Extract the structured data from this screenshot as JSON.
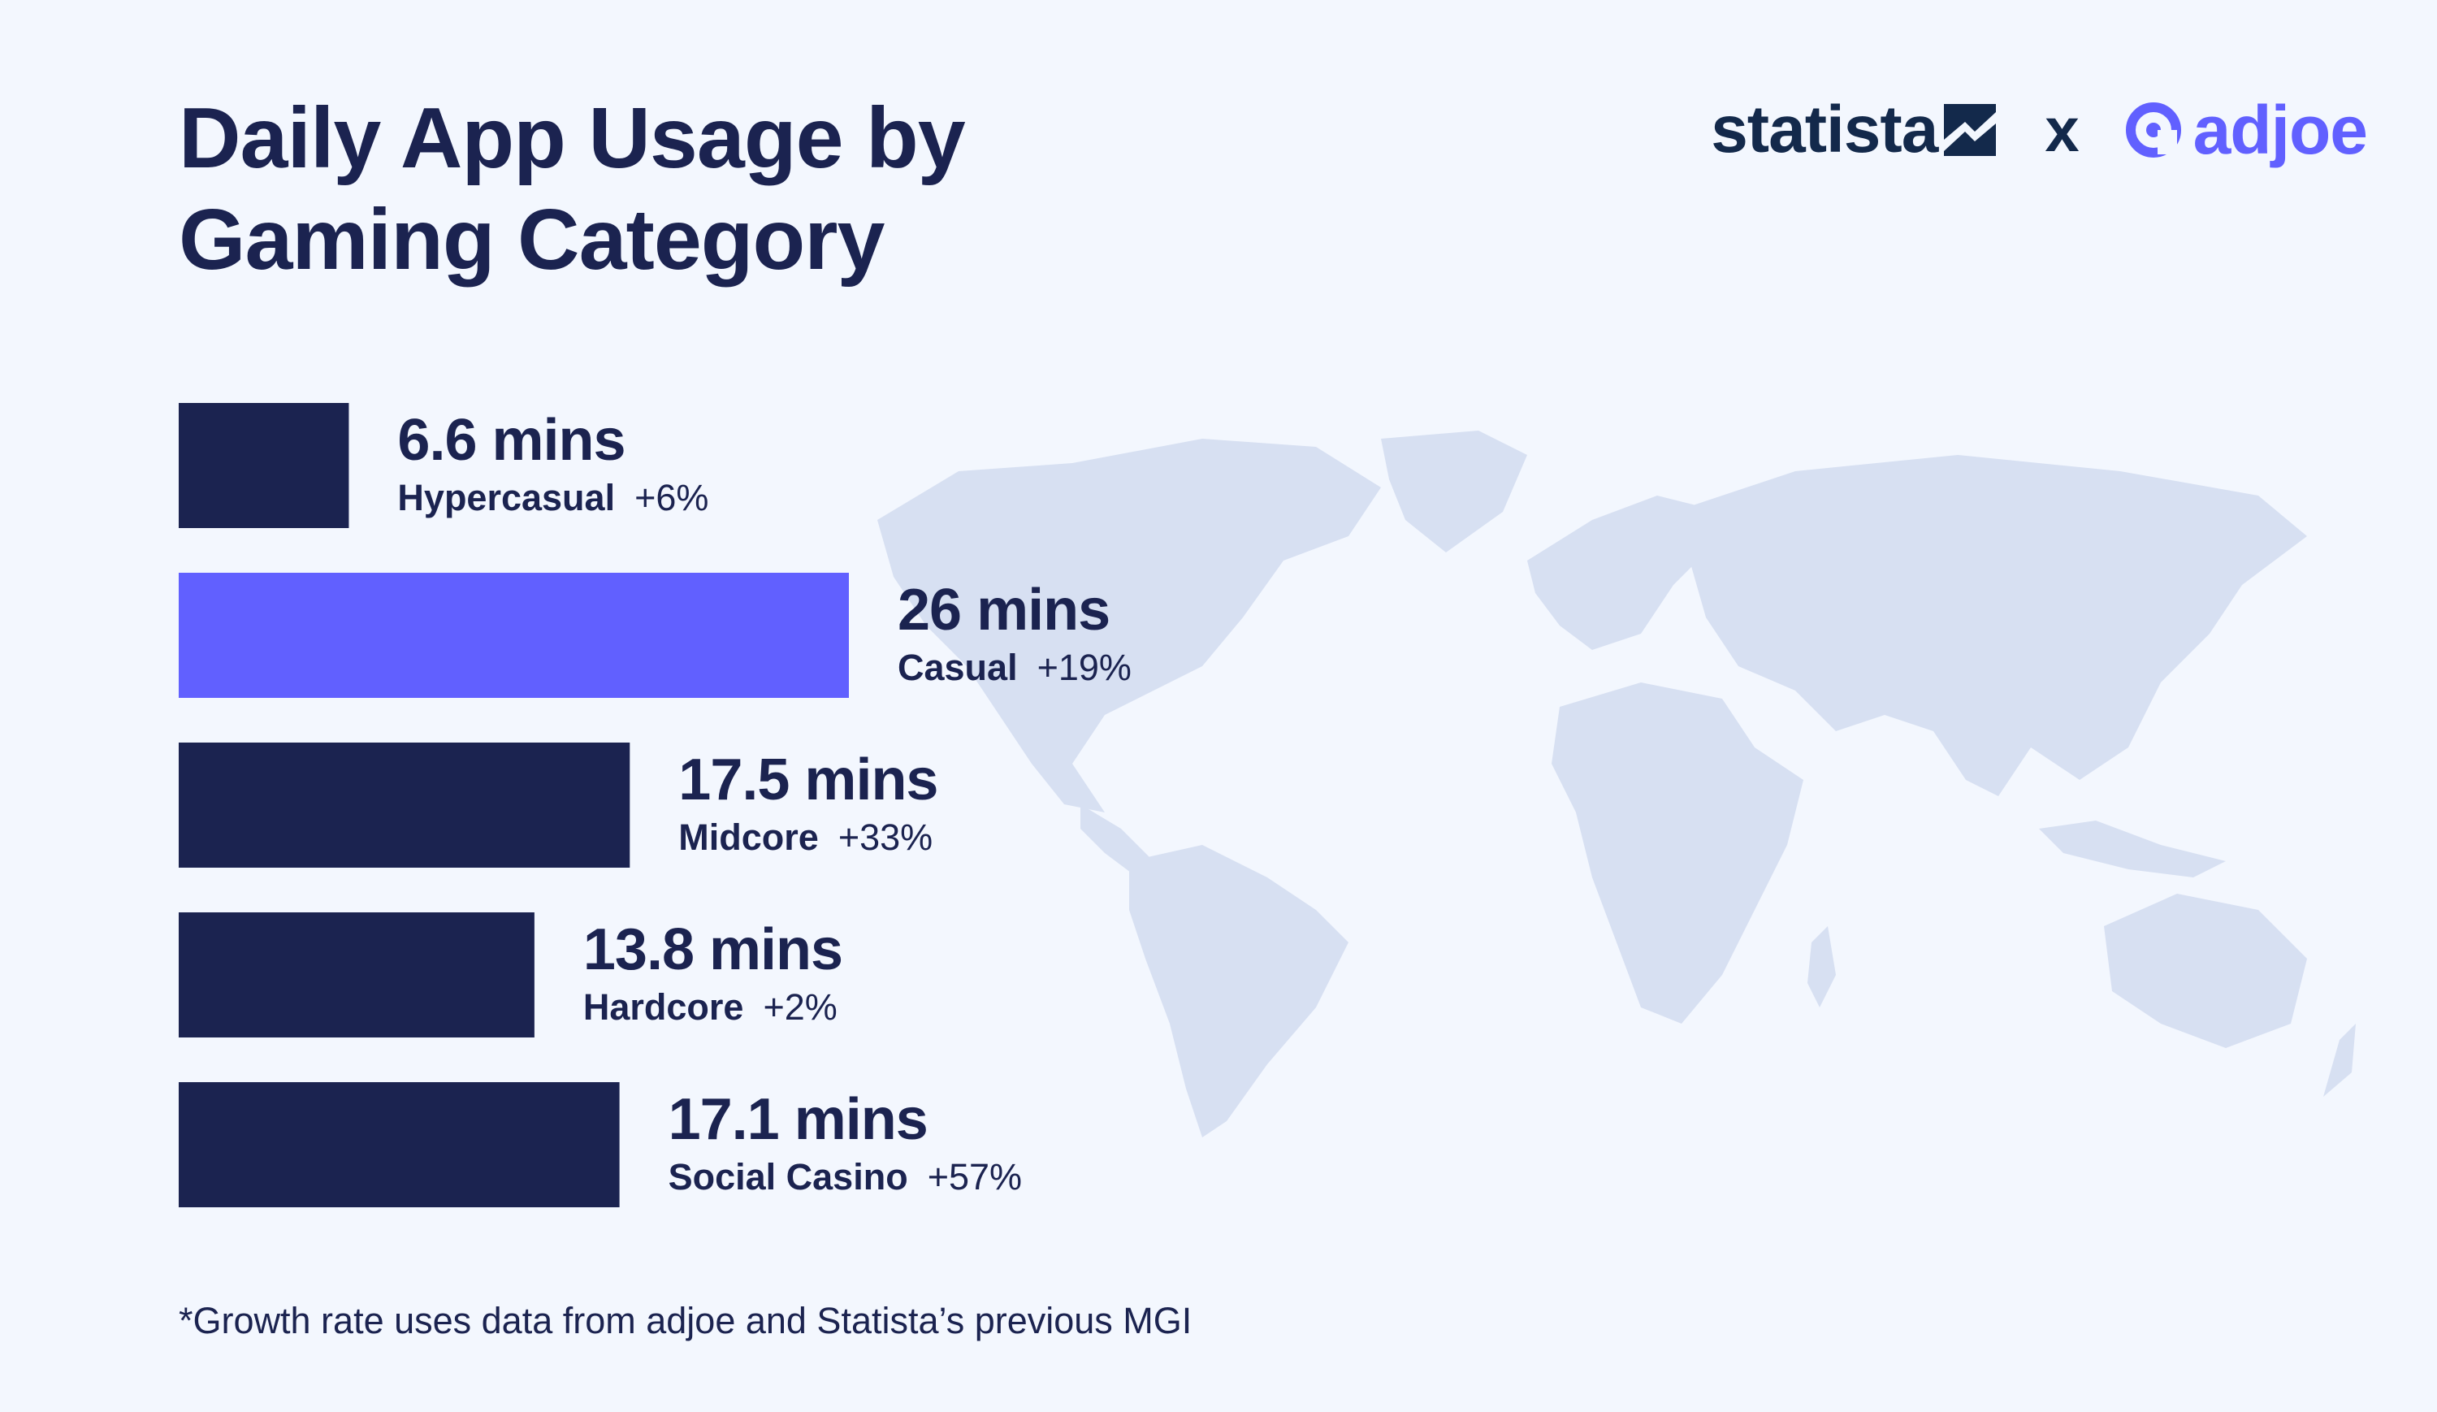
{
  "title_line1": "Daily App Usage by",
  "title_line2": "Gaming Category",
  "logos": {
    "statista": "statista",
    "separator": "x",
    "adjoe": "adjoe"
  },
  "footnote": "*Growth rate uses data from adjoe and Statista’s previous MGI",
  "colors": {
    "bar_default": "#1b2350",
    "bar_highlight": "#6160ff",
    "background": "#f3f7fe",
    "map": "#d7e0f2"
  },
  "chart_data": {
    "type": "bar",
    "orientation": "horizontal",
    "title": "Daily App Usage by Gaming Category",
    "categories": [
      "Hypercasual",
      "Casual",
      "Midcore",
      "Hardcore",
      "Social Casino"
    ],
    "values": [
      6.6,
      26,
      17.5,
      13.8,
      17.1
    ],
    "value_labels": [
      "6.6 mins",
      "26 mins",
      "17.5 mins",
      "13.8 mins",
      "17.1 mins"
    ],
    "growth": [
      "+6%",
      "+19%",
      "+33%",
      "+2%",
      "+57%"
    ],
    "highlight_index": 1,
    "unit": "mins",
    "axis_visible": false,
    "grid": false
  }
}
